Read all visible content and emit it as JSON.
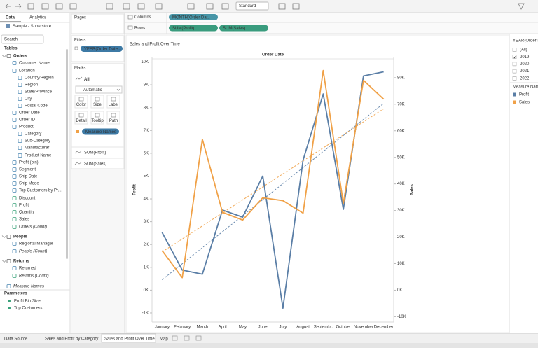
{
  "toolbar": {
    "view_size": "Standard"
  },
  "data_pane": {
    "tabs": [
      "Data",
      "Analytics"
    ],
    "datasource": "Sample - Superstore",
    "search": "Search",
    "tables_heading": "Tables",
    "tree": [
      "Orders",
      "Customer Name",
      "Location",
      "Country/Region",
      "Region",
      "State/Province",
      "City",
      "Postal Code",
      "Order Date",
      "Order ID",
      "Product",
      "Category",
      "Sub-Category",
      "Manufacturer",
      "Product Name",
      "Profit (bin)",
      "Segment",
      "Ship Date",
      "Ship Mode",
      "Top Customers by Pr...",
      "Discount",
      "Profit",
      "Quantity",
      "Sales",
      "Orders (Count)",
      "People",
      "Regional Manager",
      "People (Count)",
      "Returns",
      "Returned",
      "Returns (Count)",
      "Measure Names"
    ],
    "parameters_heading": "Parameters",
    "parameters": [
      "Profit Bin Size",
      "Top Customers"
    ]
  },
  "cards": {
    "pages": "Pages",
    "filters": "Filters",
    "filter_pills": [
      "YEAR(Order Date..."
    ],
    "marks": "Marks",
    "marks_all": "All",
    "mark_type": "Automatic",
    "mark_buttons": [
      "Color",
      "Size",
      "Label",
      "Detail",
      "Tooltip",
      "Path"
    ],
    "marks_pill": "Measure Names",
    "measure_cards": [
      "SUM(Profit)",
      "SUM(Sales)"
    ]
  },
  "shelves": {
    "columns_label": "Columns",
    "columns": [
      "MONTH(Order Dat.."
    ],
    "rows_label": "Rows",
    "rows": [
      "SUM(Profit)",
      "SUM(Sales)"
    ]
  },
  "chart_data": {
    "type": "line",
    "title": "Sales and Profit Over Time",
    "column_header": "Order Date",
    "y_label": "Profit",
    "y2_label": "Sales",
    "categories": [
      "January",
      "February",
      "March",
      "April",
      "May",
      "June",
      "July",
      "August",
      "Septemb..",
      "October",
      "November",
      "December"
    ],
    "series": [
      {
        "name": "Profit",
        "color": "#5a7ea6",
        "values": [
          2530,
          880,
          700,
          3510,
          3200,
          5000,
          -790,
          5700,
          8600,
          3540,
          9390,
          9570
        ]
      },
      {
        "name": "Sales",
        "color": "#f0a147",
        "axis": "y2",
        "values": [
          14900,
          4700,
          56800,
          29300,
          26400,
          34800,
          33700,
          29000,
          82700,
          32700,
          79000,
          71900
        ]
      }
    ],
    "trend_lines": true,
    "ylim": [
      -1400,
      10200
    ],
    "yticks": [
      {
        "value": -1000,
        "label": "-1K"
      },
      {
        "value": 0,
        "label": "0K"
      },
      {
        "value": 1000,
        "label": "1K"
      },
      {
        "value": 2000,
        "label": "2K"
      },
      {
        "value": 3000,
        "label": "3K"
      },
      {
        "value": 4000,
        "label": "4K"
      },
      {
        "value": 5000,
        "label": "5K"
      },
      {
        "value": 6000,
        "label": "6K"
      },
      {
        "value": 7000,
        "label": "7K"
      },
      {
        "value": 8000,
        "label": "8K"
      },
      {
        "value": 9000,
        "label": "9K"
      },
      {
        "value": 10000,
        "label": "10K"
      }
    ],
    "y2lim": [
      -12000,
      87600
    ],
    "y2ticks": [
      {
        "value": -10000,
        "label": "-10K"
      },
      {
        "value": 0,
        "label": "0K"
      },
      {
        "value": 10000,
        "label": "10K"
      },
      {
        "value": 20000,
        "label": "20K"
      },
      {
        "value": 30000,
        "label": "30K"
      },
      {
        "value": 40000,
        "label": "40K"
      },
      {
        "value": 50000,
        "label": "50K"
      },
      {
        "value": 60000,
        "label": "60K"
      },
      {
        "value": 70000,
        "label": "70K"
      },
      {
        "value": 80000,
        "label": "80K"
      }
    ],
    "legend": {
      "title": "Measure Names"
    }
  },
  "year_filter": {
    "title": "YEAR(Order Da...",
    "items": [
      {
        "label": "(All)",
        "checked": false
      },
      {
        "label": "2019",
        "checked": true
      },
      {
        "label": "2020",
        "checked": false
      },
      {
        "label": "2021",
        "checked": false
      },
      {
        "label": "2022",
        "checked": false
      }
    ]
  },
  "sheet_tabs": {
    "tabs": [
      "Data Source",
      "Sales and Profit by Category",
      "Sales and Profit Over Time",
      "Map"
    ],
    "active": 2
  }
}
